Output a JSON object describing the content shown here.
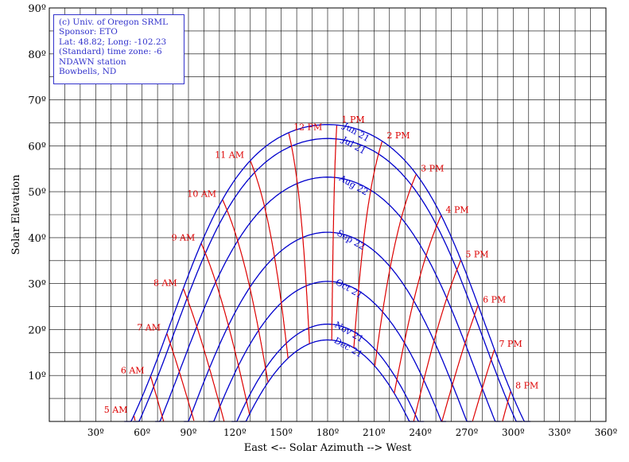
{
  "info_box": {
    "lines": [
      "(c) Univ. of Oregon SRML",
      "Sponsor: ETO",
      "Lat: 48.82; Long: -102.23",
      "(Standard) time zone: -6",
      "NDAWN station",
      "Bowbells, ND"
    ]
  },
  "chart_data": {
    "type": "line",
    "title": "",
    "xlabel": "East <-- Solar Azimuth --> West",
    "ylabel": "Solar Elevation",
    "xlim": [
      0,
      360
    ],
    "ylim": [
      0,
      90
    ],
    "grid": true,
    "x_ticks": [
      30,
      60,
      90,
      120,
      150,
      180,
      210,
      240,
      270,
      300,
      330,
      360
    ],
    "x_tick_labels": [
      "30º",
      "60º",
      "90º",
      "120º",
      "150º",
      "180º",
      "210º",
      "240º",
      "270º",
      "300º",
      "330º",
      "360º"
    ],
    "y_ticks": [
      10,
      20,
      30,
      40,
      50,
      60,
      70,
      80,
      90
    ],
    "y_tick_labels": [
      "10º",
      "20º",
      "30º",
      "40º",
      "50º",
      "60º",
      "70º",
      "80º",
      "90º"
    ],
    "colors": {
      "date_lines": "#0000cc",
      "hour_lines": "#dd0000",
      "grid": "#000000"
    },
    "latitude": 48.82,
    "longitude": -102.23,
    "time_zone": -6,
    "date_series": [
      {
        "name": "Jun 21",
        "declination": 23.44
      },
      {
        "name": "Jul 21",
        "declination": 20.4
      },
      {
        "name": "Aug 22",
        "declination": 12.0
      },
      {
        "name": "Sep 22",
        "declination": 0.0
      },
      {
        "name": "Oct 21",
        "declination": -10.7
      },
      {
        "name": "Nov 21",
        "declination": -20.0
      },
      {
        "name": "Dec 21",
        "declination": -23.44
      }
    ],
    "hour_series": [
      {
        "name": "5 AM",
        "hour": 5
      },
      {
        "name": "6 AM",
        "hour": 6
      },
      {
        "name": "7 AM",
        "hour": 7
      },
      {
        "name": "8 AM",
        "hour": 8
      },
      {
        "name": "9 AM",
        "hour": 9
      },
      {
        "name": "10 AM",
        "hour": 10
      },
      {
        "name": "11 AM",
        "hour": 11
      },
      {
        "name": "12 PM",
        "hour": 12
      },
      {
        "name": "1 PM",
        "hour": 13
      },
      {
        "name": "2 PM",
        "hour": 14
      },
      {
        "name": "3 PM",
        "hour": 15
      },
      {
        "name": "4 PM",
        "hour": 16
      },
      {
        "name": "5 PM",
        "hour": 17
      },
      {
        "name": "6 PM",
        "hour": 18
      },
      {
        "name": "7 PM",
        "hour": 19
      },
      {
        "name": "8 PM",
        "hour": 20
      }
    ]
  }
}
